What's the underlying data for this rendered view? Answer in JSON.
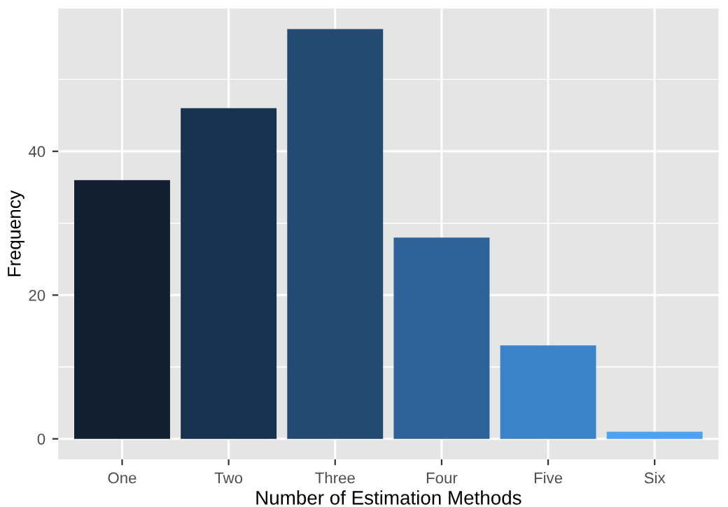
{
  "chart_data": {
    "type": "bar",
    "xlabel": "Number of Estimation Methods",
    "ylabel": "Frequency",
    "categories": [
      "One",
      "Two",
      "Three",
      "Four",
      "Five",
      "Six"
    ],
    "values": [
      36,
      46,
      57,
      28,
      13,
      1
    ],
    "colors": [
      "#111f30",
      "#17324f",
      "#244a72",
      "#2e6399",
      "#3a83c8",
      "#4aa3f2"
    ],
    "ylim": [
      -2.85,
      59.85
    ],
    "yticks": [
      0,
      20,
      40
    ],
    "grid": true
  }
}
